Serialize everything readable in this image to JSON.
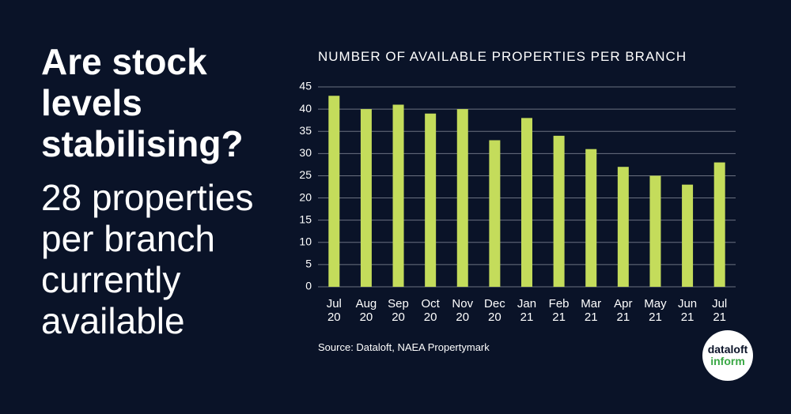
{
  "headline": "Are stock levels stabilising?",
  "subheadline": "28 properties per branch currently available",
  "logo": {
    "line1": "dataloft",
    "line2": "inform"
  },
  "chart_data": {
    "type": "bar",
    "title": "NUMBER OF AVAILABLE PROPERTIES PER BRANCH",
    "source": "Source: Dataloft, NAEA Propertymark",
    "categories": [
      "Jul 20",
      "Aug 20",
      "Sep 20",
      "Oct 20",
      "Nov 20",
      "Dec 20",
      "Jan 21",
      "Feb 21",
      "Mar 21",
      "Apr 21",
      "May 21",
      "Jun 21",
      "Jul 21"
    ],
    "values": [
      43,
      40,
      41,
      39,
      40,
      33,
      38,
      34,
      31,
      27,
      25,
      23,
      28
    ],
    "color": "#c4dc5b",
    "ylim": [
      0,
      45
    ],
    "yticks": [
      0,
      5,
      10,
      15,
      20,
      25,
      30,
      35,
      40,
      45
    ],
    "grid": true
  }
}
